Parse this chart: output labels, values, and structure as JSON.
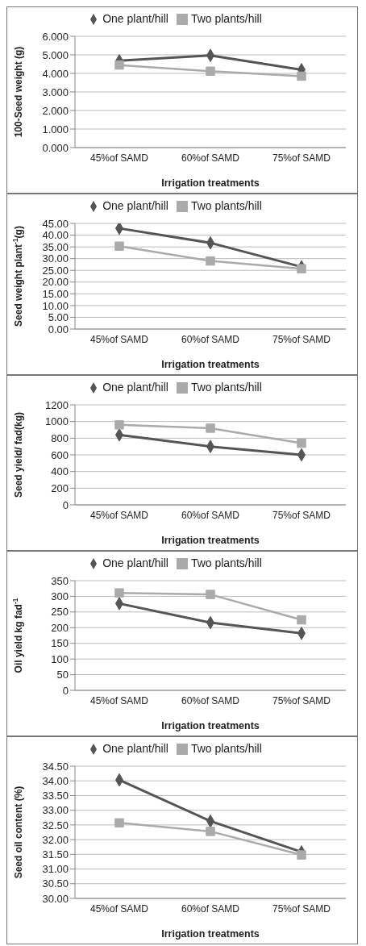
{
  "chart_data": [
    {
      "type": "line",
      "xlabel": "Irrigation treatments",
      "ylabel": "100-Seed weight (g)",
      "categories": [
        "45%of SAMD",
        "60%of SAMD",
        "75%of SAMD"
      ],
      "series": [
        {
          "name": "One plant/hill",
          "color": "#555555",
          "marker": "diamond",
          "values": [
            4.68,
            4.97,
            4.2
          ]
        },
        {
          "name": "Two plants/hill",
          "color": "#aaaaaa",
          "marker": "square",
          "values": [
            4.45,
            4.12,
            3.85
          ]
        }
      ],
      "ylim": [
        0,
        6
      ],
      "yticks": [
        {
          "value": 0,
          "label": "0.000"
        },
        {
          "value": 1,
          "label": "1.000"
        },
        {
          "value": 2,
          "label": "2.000"
        },
        {
          "value": 3,
          "label": "3.000"
        },
        {
          "value": 4,
          "label": "4.000"
        },
        {
          "value": 5,
          "label": "5.000"
        },
        {
          "value": 6,
          "label": "6.000"
        }
      ],
      "grid": "y",
      "legend": "top"
    },
    {
      "type": "line",
      "xlabel": "Irrigation treatments",
      "ylabel": "Seed weight plant$^{-1}$(g)",
      "categories": [
        "45%of SAMD",
        "60%of SAMD",
        "75%of SAMD"
      ],
      "series": [
        {
          "name": "One plant/hill",
          "color": "#555555",
          "marker": "diamond",
          "values": [
            42.9,
            36.7,
            26.5
          ]
        },
        {
          "name": "Two plants/hill",
          "color": "#aaaaaa",
          "marker": "square",
          "values": [
            35.3,
            29.0,
            25.7
          ]
        }
      ],
      "ylim": [
        0,
        45
      ],
      "yticks": [
        {
          "value": 0,
          "label": "0.00"
        },
        {
          "value": 5,
          "label": "5.00"
        },
        {
          "value": 10,
          "label": "10.00"
        },
        {
          "value": 15,
          "label": "15.00"
        },
        {
          "value": 20,
          "label": "20.00"
        },
        {
          "value": 25,
          "label": "25.00"
        },
        {
          "value": 30,
          "label": "30.00"
        },
        {
          "value": 35,
          "label": "35.00"
        },
        {
          "value": 40,
          "label": "40.00"
        },
        {
          "value": 45,
          "label": "45.00"
        }
      ],
      "grid": "y",
      "legend": "top"
    },
    {
      "type": "line",
      "xlabel": "Irrigation treatments",
      "ylabel": "Seed yield/ fad(kg)",
      "categories": [
        "45%of SAMD",
        "60%of SAMD",
        "75%of SAMD"
      ],
      "series": [
        {
          "name": "One plant/hill",
          "color": "#555555",
          "marker": "diamond",
          "values": [
            840,
            700,
            600
          ]
        },
        {
          "name": "Two plants/hill",
          "color": "#aaaaaa",
          "marker": "square",
          "values": [
            960,
            920,
            740
          ]
        }
      ],
      "ylim": [
        0,
        1200
      ],
      "yticks": [
        0,
        200,
        400,
        600,
        800,
        1000,
        1200
      ],
      "grid": "y",
      "legend": "top"
    },
    {
      "type": "line",
      "xlabel": "Irrigation treatments",
      "ylabel": "Oil yield kg fad$^{-1}$",
      "categories": [
        "45%of SAMD",
        "60%of SAMD",
        "75%of SAMD"
      ],
      "series": [
        {
          "name": "One plant/hill",
          "color": "#555555",
          "marker": "diamond",
          "values": [
            277,
            216,
            182
          ]
        },
        {
          "name": "Two plants/hill",
          "color": "#aaaaaa",
          "marker": "square",
          "values": [
            311,
            306,
            225
          ]
        }
      ],
      "ylim": [
        0,
        350
      ],
      "yticks": [
        0,
        50,
        100,
        150,
        200,
        250,
        300,
        350
      ],
      "grid": "y",
      "legend": "top"
    },
    {
      "type": "line",
      "xlabel": "Irrigation treatments",
      "ylabel": "Seed oil content (%)",
      "categories": [
        "45%of SAMD",
        "60%of SAMD",
        "75%of SAMD"
      ],
      "series": [
        {
          "name": "One plant/hill",
          "color": "#555555",
          "marker": "diamond",
          "values": [
            34.03,
            32.63,
            31.58
          ]
        },
        {
          "name": "Two plants/hill",
          "color": "#aaaaaa",
          "marker": "square",
          "values": [
            32.57,
            32.28,
            31.48
          ]
        }
      ],
      "ylim": [
        30,
        34.5
      ],
      "yticks": [
        {
          "value": 30,
          "label": "30.00"
        },
        {
          "value": 30.5,
          "label": "30.50"
        },
        {
          "value": 31,
          "label": "31.00"
        },
        {
          "value": 31.5,
          "label": "31.50"
        },
        {
          "value": 32,
          "label": "32.00"
        },
        {
          "value": 32.5,
          "label": "32.50"
        },
        {
          "value": 33,
          "label": "33.00"
        },
        {
          "value": 33.5,
          "label": "33.50"
        },
        {
          "value": 34,
          "label": "34.00"
        },
        {
          "value": 34.5,
          "label": "34.50"
        }
      ],
      "grid": "y",
      "legend": "top"
    }
  ]
}
